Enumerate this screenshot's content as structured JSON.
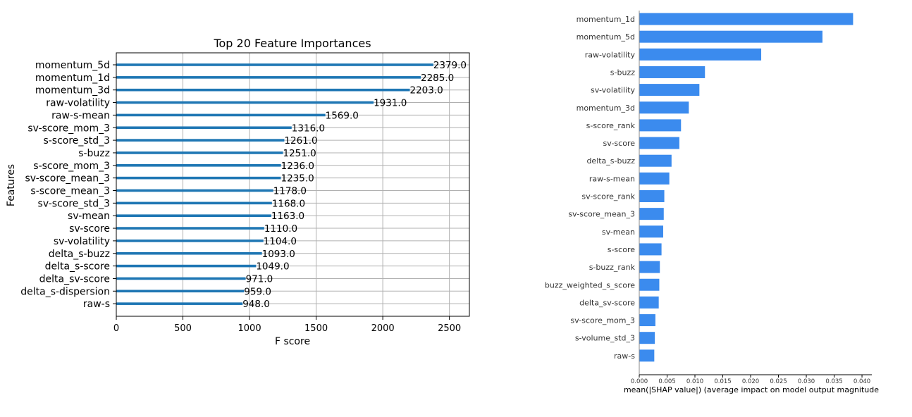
{
  "colors": {
    "left_bar": "#1f77b4",
    "right_bar": "#3b8bee",
    "grid": "#b0b0b0",
    "axis": "#000000"
  },
  "chart_data": [
    {
      "type": "bar",
      "orientation": "horizontal",
      "title": "Top 20 Feature Importances",
      "xlabel": "F score",
      "ylabel": "Features",
      "xlim": [
        0,
        2650
      ],
      "xticks": [
        0,
        500,
        1000,
        1500,
        2000,
        2500
      ],
      "grid": true,
      "categories": [
        "momentum_5d",
        "momentum_1d",
        "momentum_3d",
        "raw-volatility",
        "raw-s-mean",
        "sv-score_mom_3",
        "s-score_std_3",
        "s-buzz",
        "s-score_mom_3",
        "sv-score_mean_3",
        "s-score_mean_3",
        "sv-score_std_3",
        "sv-mean",
        "sv-score",
        "sv-volatility",
        "delta_s-buzz",
        "delta_s-score",
        "delta_sv-score",
        "delta_s-dispersion",
        "raw-s"
      ],
      "values": [
        2379,
        2285,
        2203,
        1931,
        1569,
        1316,
        1261,
        1251,
        1236,
        1235,
        1178,
        1168,
        1163,
        1110,
        1104,
        1093,
        1049,
        971,
        959,
        948
      ],
      "value_labels": [
        "2379.0",
        "2285.0",
        "2203.0",
        "1931.0",
        "1569.0",
        "1316.0",
        "1261.0",
        "1251.0",
        "1236.0",
        "1235.0",
        "1178.0",
        "1168.0",
        "1163.0",
        "1110.0",
        "1104.0",
        "1093.0",
        "1049.0",
        "971.0",
        "959.0",
        "948.0"
      ]
    },
    {
      "type": "bar",
      "orientation": "horizontal",
      "title": "",
      "xlabel": "mean(|SHAP value|) (average impact on model output magnitude",
      "ylabel": "",
      "xlim": [
        0,
        0.0405
      ],
      "xticks": [
        "0.000",
        "0.005",
        "0.010",
        "0.015",
        "0.020",
        "0.025",
        "0.030",
        "0.035",
        "0.040"
      ],
      "grid": false,
      "categories": [
        "momentum_1d",
        "momentum_5d",
        "raw-volatility",
        "s-buzz",
        "sv-volatility",
        "momentum_3d",
        "s-score_rank",
        "sv-score",
        "delta_s-buzz",
        "raw-s-mean",
        "sv-score_rank",
        "sv-score_mean_3",
        "sv-mean",
        "s-score",
        "s-buzz_rank",
        "buzz_weighted_s_score",
        "delta_sv-score",
        "sv-score_mom_3",
        "s-volume_std_3",
        "raw-s"
      ],
      "values": [
        0.0384,
        0.0329,
        0.0219,
        0.0118,
        0.0108,
        0.0089,
        0.0075,
        0.0072,
        0.0058,
        0.0054,
        0.0045,
        0.0044,
        0.0043,
        0.004,
        0.0037,
        0.0036,
        0.0035,
        0.0029,
        0.0028,
        0.0027
      ]
    }
  ]
}
